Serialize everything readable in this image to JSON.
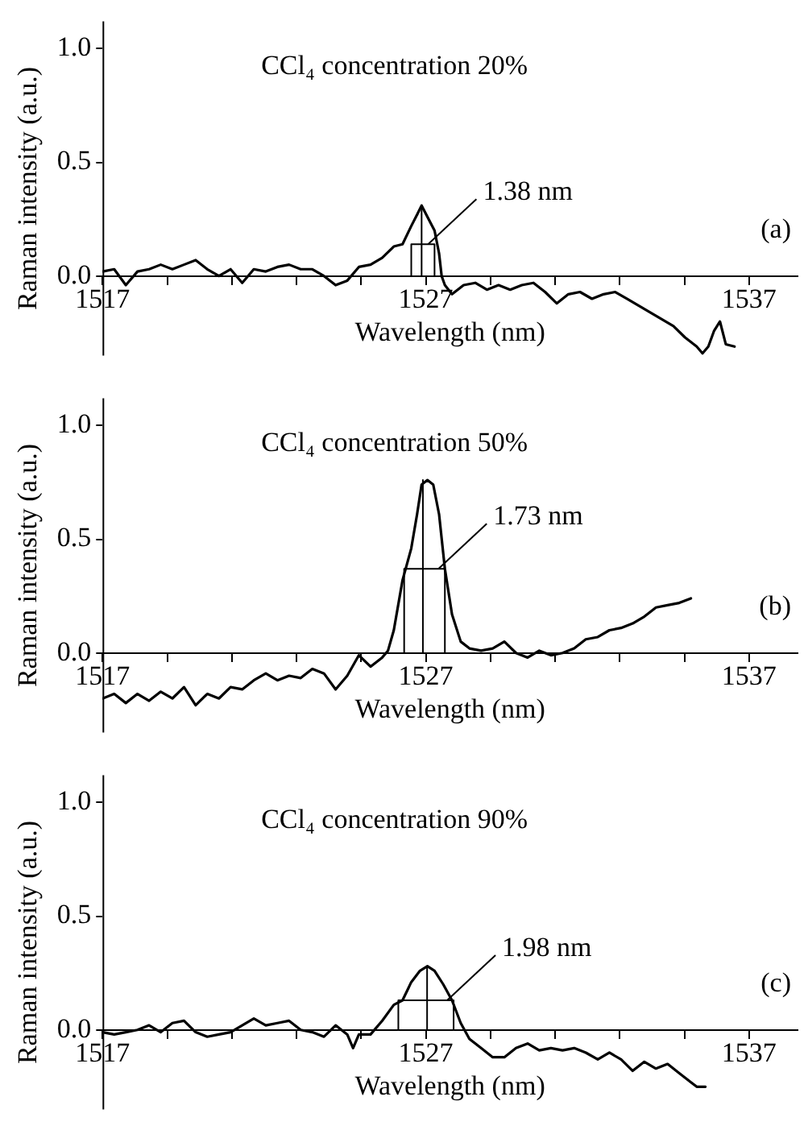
{
  "chart_data": [
    {
      "type": "line",
      "title": "CCl₄ concentration 20%",
      "xlabel": "Wavelength (nm)",
      "ylabel": "Raman intensity (a.u.)",
      "xlim": [
        1517,
        1538.5
      ],
      "ylim": [
        -0.35,
        1.12
      ],
      "xticks": [
        1517,
        {
          "value": 1519,
          "label": null
        },
        {
          "value": 1521,
          "label": null
        },
        {
          "value": 1523,
          "label": null
        },
        {
          "value": 1525,
          "label": null
        },
        1527,
        {
          "value": 1529,
          "label": null
        },
        {
          "value": 1531,
          "label": null
        },
        {
          "value": 1533,
          "label": null
        },
        {
          "value": 1535,
          "label": null
        },
        1537
      ],
      "yticks": [
        {
          "value": 0,
          "label": "0.0"
        },
        {
          "value": 0.5,
          "label": "0.5"
        },
        {
          "value": 1,
          "label": "1.0"
        }
      ],
      "grid": false,
      "legend": false,
      "line_style": "solid",
      "marker": "none",
      "annotations": [
        {
          "text": "1.38 nm",
          "x": 1527.27,
          "y": 0.14
        },
        "(a)"
      ],
      "series": [
        {
          "color": "#000000",
          "x": [
            1517.0,
            1517.36,
            1517.72,
            1518.08,
            1518.44,
            1518.8,
            1519.16,
            1519.52,
            1519.88,
            1520.24,
            1520.6,
            1520.96,
            1521.32,
            1521.68,
            1522.05,
            1522.41,
            1522.77,
            1523.13,
            1523.49,
            1523.85,
            1524.21,
            1524.57,
            1524.93,
            1525.29,
            1525.65,
            1526.01,
            1526.28,
            1526.55,
            1526.73,
            1526.87,
            1527.05,
            1527.27,
            1527.41,
            1527.49,
            1527.59,
            1527.81,
            1528.17,
            1528.53,
            1528.89,
            1529.25,
            1529.61,
            1529.97,
            1530.33,
            1530.69,
            1531.05,
            1531.41,
            1531.77,
            1532.14,
            1532.5,
            1532.86,
            1533.22,
            1533.58,
            1533.94,
            1534.3,
            1534.66,
            1535.02,
            1535.38,
            1535.56,
            1535.74,
            1535.92,
            1536.1,
            1536.28,
            1536.55
          ],
          "values": [
            0.02,
            0.03,
            -0.04,
            0.02,
            0.03,
            0.05,
            0.03,
            0.05,
            0.07,
            0.03,
            0.0,
            0.03,
            -0.03,
            0.03,
            0.02,
            0.04,
            0.05,
            0.03,
            0.03,
            0.0,
            -0.04,
            -0.02,
            0.04,
            0.05,
            0.08,
            0.13,
            0.14,
            0.22,
            0.27,
            0.31,
            0.26,
            0.2,
            0.1,
            0.0,
            -0.04,
            -0.08,
            -0.04,
            -0.03,
            -0.06,
            -0.04,
            -0.06,
            -0.04,
            -0.03,
            -0.07,
            -0.12,
            -0.08,
            -0.07,
            -0.1,
            -0.08,
            -0.07,
            -0.1,
            -0.13,
            -0.16,
            -0.19,
            -0.22,
            -0.27,
            -0.31,
            -0.34,
            -0.31,
            -0.24,
            -0.2,
            -0.3,
            -0.31
          ]
        },
        {
          "color": "#000000",
          "x": [
            1526.55,
            1526.55,
            1527.27,
            1527.27
          ],
          "values": [
            0,
            0.14,
            0.14,
            0
          ]
        },
        {
          "color": "#000000",
          "x": [
            1526.87,
            1526.87
          ],
          "values": [
            0,
            0.31
          ]
        }
      ]
    },
    {
      "type": "line",
      "title": "CCl₄ concentration 50%",
      "xlabel": "Wavelength (nm)",
      "ylabel": "Raman intensity (a.u.)",
      "xlim": [
        1517,
        1538.5
      ],
      "ylim": [
        -0.35,
        1.12
      ],
      "xticks": [
        1517,
        {
          "value": 1519,
          "label": null
        },
        {
          "value": 1521,
          "label": null
        },
        {
          "value": 1523,
          "label": null
        },
        {
          "value": 1525,
          "label": null
        },
        1527,
        {
          "value": 1529,
          "label": null
        },
        {
          "value": 1531,
          "label": null
        },
        {
          "value": 1533,
          "label": null
        },
        {
          "value": 1535,
          "label": null
        },
        1537
      ],
      "yticks": [
        {
          "value": 0,
          "label": "0.0"
        },
        {
          "value": 0.5,
          "label": "0.5"
        },
        {
          "value": 1,
          "label": "1.0"
        }
      ],
      "grid": false,
      "legend": false,
      "line_style": "solid",
      "marker": "none",
      "annotations": [
        {
          "text": "1.73 nm",
          "x": 1527.59,
          "y": 0.37
        },
        "(b)"
      ],
      "series": [
        {
          "color": "#000000",
          "x": [
            1517.0,
            1517.36,
            1517.72,
            1518.08,
            1518.44,
            1518.8,
            1519.16,
            1519.52,
            1519.88,
            1520.24,
            1520.6,
            1520.96,
            1521.32,
            1521.68,
            1522.05,
            1522.41,
            1522.77,
            1523.13,
            1523.49,
            1523.85,
            1524.21,
            1524.57,
            1524.93,
            1525.29,
            1525.65,
            1525.83,
            1526.01,
            1526.28,
            1526.55,
            1526.73,
            1526.87,
            1527.05,
            1527.23,
            1527.41,
            1527.59,
            1527.81,
            1528.08,
            1528.35,
            1528.71,
            1529.07,
            1529.43,
            1529.79,
            1530.15,
            1530.51,
            1530.87,
            1531.23,
            1531.59,
            1531.95,
            1532.32,
            1532.68,
            1533.04,
            1533.4,
            1533.76,
            1534.12,
            1534.48,
            1534.84,
            1535.2
          ],
          "values": [
            -0.2,
            -0.18,
            -0.22,
            -0.18,
            -0.21,
            -0.17,
            -0.2,
            -0.15,
            -0.23,
            -0.18,
            -0.2,
            -0.15,
            -0.16,
            -0.12,
            -0.09,
            -0.12,
            -0.1,
            -0.11,
            -0.07,
            -0.09,
            -0.16,
            -0.1,
            -0.01,
            -0.06,
            -0.02,
            0.01,
            0.1,
            0.32,
            0.46,
            0.61,
            0.74,
            0.76,
            0.74,
            0.61,
            0.37,
            0.17,
            0.05,
            0.02,
            0.01,
            0.02,
            0.05,
            0.0,
            -0.02,
            0.01,
            -0.01,
            0.0,
            0.02,
            0.06,
            0.07,
            0.1,
            0.11,
            0.13,
            0.16,
            0.2,
            0.21,
            0.22,
            0.24
          ]
        },
        {
          "color": "#000000",
          "x": [
            1526.33,
            1526.33,
            1527.59,
            1527.59
          ],
          "values": [
            0,
            0.37,
            0.37,
            0
          ]
        },
        {
          "color": "#000000",
          "x": [
            1526.91,
            1526.91
          ],
          "values": [
            0,
            0.76
          ]
        }
      ]
    },
    {
      "type": "line",
      "title": "CCl₄ concentration 90%",
      "xlabel": "Wavelength (nm)",
      "ylabel": "Raman intensity (a.u.)",
      "xlim": [
        1517,
        1538.5
      ],
      "ylim": [
        -0.35,
        1.12
      ],
      "xticks": [
        1517,
        {
          "value": 1519,
          "label": null
        },
        {
          "value": 1521,
          "label": null
        },
        {
          "value": 1523,
          "label": null
        },
        {
          "value": 1525,
          "label": null
        },
        1527,
        {
          "value": 1529,
          "label": null
        },
        {
          "value": 1531,
          "label": null
        },
        {
          "value": 1533,
          "label": null
        },
        {
          "value": 1535,
          "label": null
        },
        1537
      ],
      "yticks": [
        {
          "value": 0,
          "label": "0.0"
        },
        {
          "value": 0.5,
          "label": "0.5"
        },
        {
          "value": 1,
          "label": "1.0"
        }
      ],
      "grid": false,
      "legend": false,
      "line_style": "solid",
      "marker": "none",
      "annotations": [
        {
          "text": "1.98 nm",
          "x": 1527.86,
          "y": 0.13
        },
        "(c)"
      ],
      "series": [
        {
          "color": "#000000",
          "x": [
            1517.0,
            1517.36,
            1517.72,
            1518.08,
            1518.44,
            1518.8,
            1519.16,
            1519.52,
            1519.88,
            1520.24,
            1520.6,
            1520.96,
            1521.32,
            1521.68,
            1522.05,
            1522.41,
            1522.77,
            1523.13,
            1523.49,
            1523.85,
            1524.21,
            1524.57,
            1524.75,
            1524.93,
            1525.29,
            1525.65,
            1526.01,
            1526.28,
            1526.55,
            1526.82,
            1527.05,
            1527.27,
            1527.54,
            1527.81,
            1528.08,
            1528.35,
            1528.71,
            1529.07,
            1529.43,
            1529.79,
            1530.15,
            1530.51,
            1530.87,
            1531.23,
            1531.59,
            1531.95,
            1532.32,
            1532.68,
            1533.04,
            1533.4,
            1533.76,
            1534.12,
            1534.48,
            1534.84,
            1535.2,
            1535.38,
            1535.65
          ],
          "values": [
            -0.01,
            -0.02,
            -0.01,
            0.0,
            0.02,
            -0.01,
            0.03,
            0.04,
            -0.01,
            -0.03,
            -0.02,
            -0.01,
            0.02,
            0.05,
            0.02,
            0.03,
            0.04,
            0.0,
            -0.01,
            -0.03,
            0.02,
            -0.02,
            -0.08,
            -0.02,
            -0.02,
            0.04,
            0.11,
            0.13,
            0.21,
            0.26,
            0.28,
            0.26,
            0.2,
            0.13,
            0.03,
            -0.04,
            -0.08,
            -0.12,
            -0.12,
            -0.08,
            -0.06,
            -0.09,
            -0.08,
            -0.09,
            -0.08,
            -0.1,
            -0.13,
            -0.1,
            -0.13,
            -0.18,
            -0.14,
            -0.17,
            -0.15,
            -0.19,
            -0.23,
            -0.25,
            -0.25
          ]
        },
        {
          "color": "#000000",
          "x": [
            1526.15,
            1526.15,
            1527.86,
            1527.86
          ],
          "values": [
            0,
            0.13,
            0.13,
            0
          ]
        },
        {
          "color": "#000000",
          "x": [
            1527.04,
            1527.04
          ],
          "values": [
            0,
            0.28
          ]
        }
      ]
    }
  ]
}
